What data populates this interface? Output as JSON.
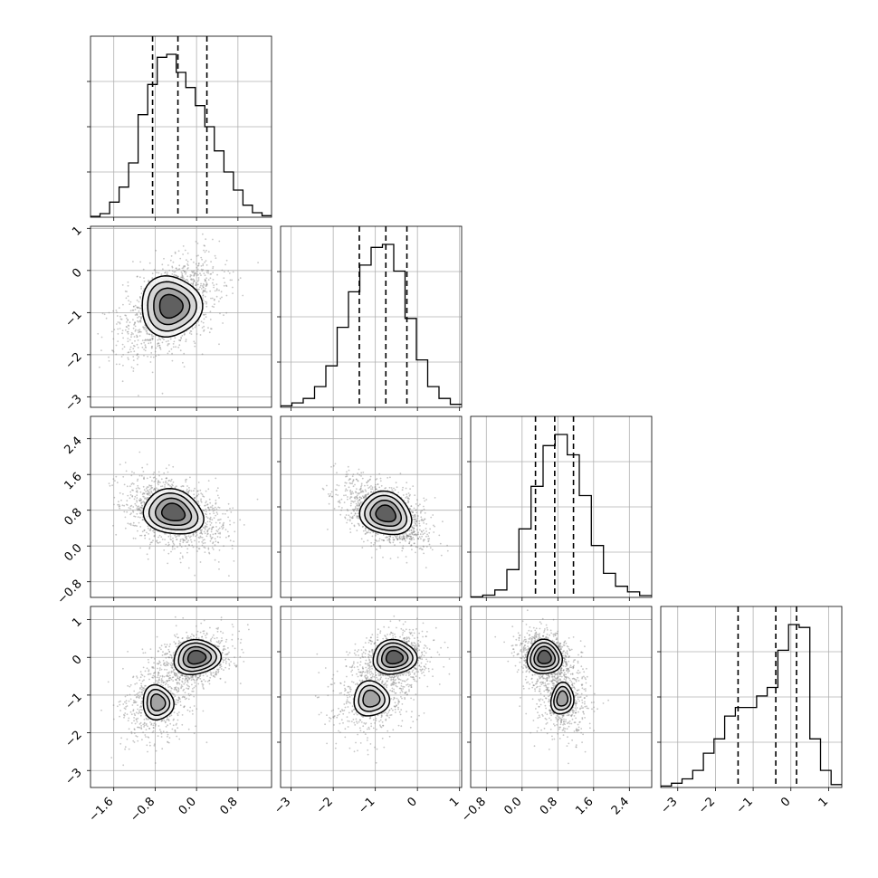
{
  "chart_data": {
    "type": "corner",
    "parameters": 4,
    "grid": true,
    "scatter_color": "#808080",
    "line_color": "#000000",
    "ranges": [
      [
        -2.05,
        1.45
      ],
      [
        -3.25,
        1.05
      ],
      [
        -1.15,
        2.9
      ],
      [
        -3.45,
        1.35
      ]
    ],
    "ticks": {
      "p0": {
        "values": [
          -1.6,
          -0.8,
          0.0,
          0.8
        ],
        "labels": [
          "−1.6",
          "−0.8",
          "0.0",
          "0.8"
        ]
      },
      "p1": {
        "values": [
          -3,
          -2,
          -1,
          0,
          1
        ],
        "labels": [
          "−3",
          "−2",
          "−1",
          "0",
          "1"
        ]
      },
      "p2": {
        "values": [
          -0.8,
          0.0,
          0.8,
          1.6,
          2.4
        ],
        "labels": [
          "−0.8",
          "0.0",
          "0.8",
          "1.6",
          "2.4"
        ]
      },
      "p3": {
        "values": [
          -3,
          -2,
          -1,
          0,
          1
        ],
        "labels": [
          "−3",
          "−2",
          "−1",
          "0",
          "1"
        ]
      }
    },
    "quantiles": [
      [
        -0.85,
        -0.36,
        0.2
      ],
      [
        -1.38,
        -0.75,
        -0.25
      ],
      [
        0.3,
        0.73,
        1.15
      ],
      [
        -1.4,
        -0.4,
        0.15
      ]
    ],
    "histograms": [
      [
        0.3,
        1.2,
        5,
        10,
        18,
        34,
        44,
        53,
        54,
        48,
        43,
        37,
        30,
        22,
        15,
        9,
        4,
        1.5,
        0.5
      ],
      [
        0.5,
        1.5,
        3,
        7,
        14,
        27,
        39,
        48,
        54,
        55,
        46,
        30,
        16,
        7,
        3,
        1
      ],
      [
        0.3,
        1.2,
        4,
        15,
        37,
        60,
        82,
        88,
        77,
        55,
        28,
        13,
        6,
        3,
        1
      ],
      [
        0.5,
        1.5,
        3,
        6,
        12,
        17,
        25,
        28,
        28,
        32,
        35,
        48,
        57,
        56,
        17,
        6,
        1
      ]
    ]
  }
}
